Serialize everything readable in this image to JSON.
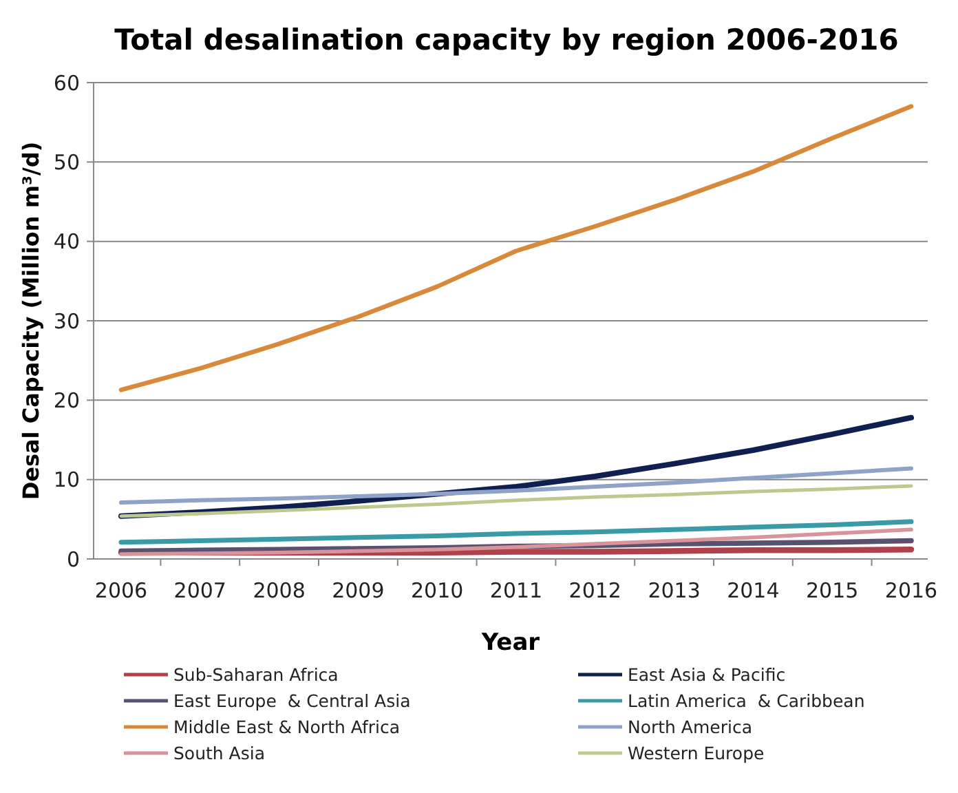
{
  "chart_data": {
    "type": "line",
    "title": "Total desalination capacity by region 2006-2016",
    "xlabel": "Year",
    "ylabel": "Desal Capacity (Million  m³/d)",
    "categories": [
      "2006",
      "2007",
      "2008",
      "2009",
      "2010",
      "2011",
      "2012",
      "2013",
      "2014",
      "2015",
      "2016"
    ],
    "ylim": [
      0,
      60
    ],
    "yticks": [
      0,
      10,
      20,
      30,
      40,
      50,
      60
    ],
    "grid": "y",
    "legend": "bottom",
    "marker": "none",
    "series": [
      {
        "name": "Sub-Saharan Africa",
        "color": "#b0404a",
        "values": [
          0.8,
          0.8,
          0.8,
          0.8,
          0.8,
          0.9,
          0.9,
          1.0,
          1.1,
          1.1,
          1.2
        ]
      },
      {
        "name": "East Asia & Pacific",
        "color": "#0f1f4f",
        "values": [
          5.4,
          5.9,
          6.5,
          7.3,
          8.2,
          9.1,
          10.4,
          12.0,
          13.7,
          15.7,
          17.8
        ]
      },
      {
        "name": "East Europe  & Central Asia",
        "color": "#5a5070",
        "values": [
          1.0,
          1.1,
          1.2,
          1.3,
          1.4,
          1.6,
          1.7,
          1.9,
          2.0,
          2.1,
          2.3
        ]
      },
      {
        "name": "Latin America  & Caribbean",
        "color": "#3a9aa5",
        "values": [
          2.1,
          2.3,
          2.5,
          2.7,
          2.9,
          3.2,
          3.4,
          3.7,
          4.0,
          4.3,
          4.7
        ]
      },
      {
        "name": "Middle East & North Africa",
        "color": "#d9893a",
        "values": [
          21.3,
          24.0,
          27.1,
          30.5,
          34.3,
          38.8,
          41.9,
          45.2,
          48.8,
          53.0,
          57.0
        ]
      },
      {
        "name": "North America",
        "color": "#8fa3c8",
        "values": [
          7.1,
          7.4,
          7.6,
          7.9,
          8.2,
          8.6,
          9.1,
          9.6,
          10.2,
          10.8,
          11.4
        ]
      },
      {
        "name": "South Asia",
        "color": "#d9939a",
        "values": [
          0.6,
          0.7,
          0.8,
          1.0,
          1.2,
          1.5,
          1.9,
          2.3,
          2.7,
          3.2,
          3.7
        ]
      },
      {
        "name": "Western Europe",
        "color": "#bcc98f",
        "values": [
          5.4,
          5.7,
          6.1,
          6.5,
          6.9,
          7.4,
          7.8,
          8.1,
          8.5,
          8.8,
          9.2
        ]
      }
    ]
  }
}
